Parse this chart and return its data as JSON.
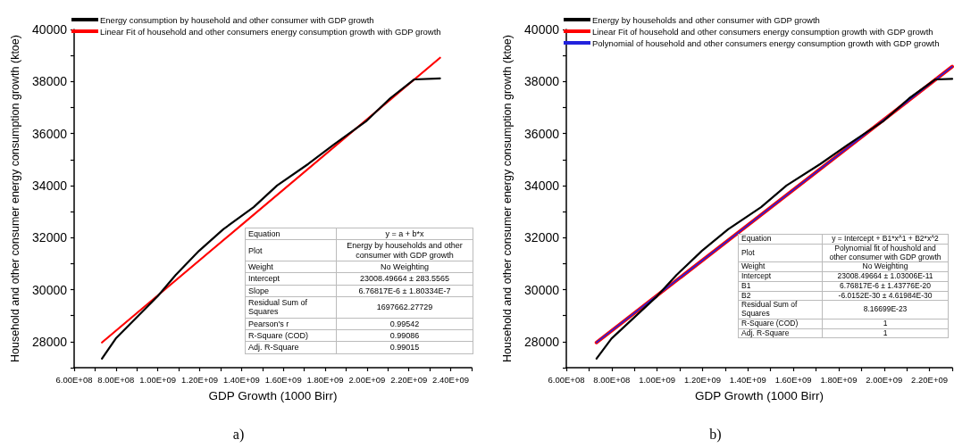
{
  "chart_data": [
    {
      "type": "line",
      "xlabel": "GDP Growth (1000 Birr)",
      "ylabel": "Household and other consumer energy consumption growth (ktoe)",
      "legend": "top left",
      "marker": "none",
      "line_style": "solid",
      "xlim": [
        600000000,
        2500000000
      ],
      "xticks": [
        {
          "value": 600000000,
          "label": "6.00E+08"
        },
        {
          "value": 700000000,
          "label": null
        },
        {
          "value": 800000000,
          "label": "8.00E+08"
        },
        {
          "value": 900000000,
          "label": null
        },
        {
          "value": 1000000000,
          "label": "1.00E+09"
        },
        {
          "value": 1100000000,
          "label": null
        },
        {
          "value": 1200000000,
          "label": "1.20E+09"
        },
        {
          "value": 1300000000,
          "label": null
        },
        {
          "value": 1400000000,
          "label": "1.40E+09"
        },
        {
          "value": 1500000000,
          "label": null
        },
        {
          "value": 1600000000,
          "label": "1.60E+09"
        },
        {
          "value": 1700000000,
          "label": null
        },
        {
          "value": 1800000000,
          "label": "1.80E+09"
        },
        {
          "value": 1900000000,
          "label": null
        },
        {
          "value": 2000000000,
          "label": "2.00E+09"
        },
        {
          "value": 2100000000,
          "label": null
        },
        {
          "value": 2200000000,
          "label": "2.20E+09"
        },
        {
          "value": 2300000000,
          "label": null
        },
        {
          "value": 2400000000,
          "label": "2.40E+09"
        },
        {
          "value": 2500000000,
          "label": null
        }
      ],
      "ylim": [
        27000,
        40000
      ],
      "yticks": [
        {
          "value": 27000,
          "label": null
        },
        28000,
        {
          "value": 29000,
          "label": null
        },
        30000,
        {
          "value": 31000,
          "label": null
        },
        32000,
        {
          "value": 33000,
          "label": null
        },
        34000,
        {
          "value": 35000,
          "label": null
        },
        36000,
        {
          "value": 37000,
          "label": null
        },
        38000,
        {
          "value": 39000,
          "label": null
        },
        40000
      ],
      "series": [
        {
          "name": "Energy consumption by household and other consumer with GDP growth",
          "color": "#000000",
          "x": [
            733000000,
            799000000,
            1000000000,
            1085000000,
            1197000000,
            1313000000,
            1458000000,
            1570000000,
            1719000000,
            1842000000,
            1994000000,
            2110000000,
            2226000000,
            2349000000
          ],
          "values": [
            27350,
            28120,
            29750,
            30560,
            31490,
            32320,
            33170,
            34000,
            34830,
            35580,
            36460,
            37350,
            38080,
            38120
          ]
        },
        {
          "name": "Linear Fit of household and other consumers energy consumption growth with GDP growth",
          "color": "#ff0000",
          "x": [
            733000000,
            2349000000
          ],
          "values": [
            27970,
            38910
          ]
        }
      ],
      "annotations": [
        "a)",
        "Equation",
        "y = a + b*x",
        "Plot",
        "Energy by households and other consumer with GDP growth",
        "Weight",
        "No Weighting",
        "Intercept",
        "23008.49664 ± 283.5565",
        "Slope",
        "6.76817E-6 ± 1.80334E-7",
        "Residual Sum of Squares",
        "1697662.27729",
        "Pearson's r",
        "0.99542",
        "R-Square (COD)",
        "0.99086",
        "Adj. R-Square",
        "0.99015"
      ]
    },
    {
      "type": "line",
      "xlabel": "GDP Growth (1000 Birr)",
      "ylabel": "Household and other consumer energy consumption growth (ktoe)",
      "legend": "top left",
      "marker": "none",
      "line_style": "solid",
      "xlim": [
        600000000,
        2300000000
      ],
      "xticks": [
        {
          "value": 600000000,
          "label": "6.00E+08"
        },
        {
          "value": 700000000,
          "label": null
        },
        {
          "value": 800000000,
          "label": "8.00E+08"
        },
        {
          "value": 900000000,
          "label": null
        },
        {
          "value": 1000000000,
          "label": "1.00E+09"
        },
        {
          "value": 1100000000,
          "label": null
        },
        {
          "value": 1200000000,
          "label": "1.20E+09"
        },
        {
          "value": 1300000000,
          "label": null
        },
        {
          "value": 1400000000,
          "label": "1.40E+09"
        },
        {
          "value": 1500000000,
          "label": null
        },
        {
          "value": 1600000000,
          "label": "1.60E+09"
        },
        {
          "value": 1700000000,
          "label": null
        },
        {
          "value": 1800000000,
          "label": "1.80E+09"
        },
        {
          "value": 1900000000,
          "label": null
        },
        {
          "value": 2000000000,
          "label": "2.00E+09"
        },
        {
          "value": 2100000000,
          "label": null
        },
        {
          "value": 2200000000,
          "label": "2.20E+09"
        },
        {
          "value": 2300000000,
          "label": null
        }
      ],
      "ylim": [
        27000,
        40000
      ],
      "yticks": [
        {
          "value": 27000,
          "label": null
        },
        28000,
        {
          "value": 29000,
          "label": null
        },
        30000,
        {
          "value": 31000,
          "label": null
        },
        32000,
        {
          "value": 33000,
          "label": null
        },
        34000,
        {
          "value": 35000,
          "label": null
        },
        36000,
        {
          "value": 37000,
          "label": null
        },
        38000,
        {
          "value": 39000,
          "label": null
        },
        40000
      ],
      "series": [
        {
          "name": "Energy by households and other consumer with GDP growth",
          "color": "#000000",
          "x": [
            733000000,
            799000000,
            1000000000,
            1085000000,
            1197000000,
            1313000000,
            1458000000,
            1570000000,
            1719000000,
            1842000000,
            1994000000,
            2110000000,
            2226000000,
            2300000000
          ],
          "values": [
            27350,
            28120,
            29750,
            30560,
            31490,
            32320,
            33170,
            34000,
            34830,
            35580,
            36460,
            37350,
            38080,
            38100
          ]
        },
        {
          "name": "Linear Fit of household and other consumers energy consumption growth with GDP growth",
          "color": "#ff0000",
          "x": [
            733000000,
            2300000000
          ],
          "values": [
            27970,
            38570
          ]
        },
        {
          "name": "Polynomial of household and other consumers energy consumption growth with GDP growth",
          "color": "#2222dd",
          "x": [
            733000000,
            2300000000
          ],
          "values": [
            27970,
            38570
          ]
        }
      ],
      "annotations": [
        "b)",
        "Equation",
        "y = Intercept + B1*x^1 + B2*x^2",
        "Plot",
        "Polynomial fit of houshold and other consumer with GDP growth",
        "Weight",
        "No Weighting",
        "Intercept",
        "23008.49664 ± 1.03006E-11",
        "B1",
        "6.76817E-6 ± 1.43776E-20",
        "B2",
        "-6.0152E-30 ± 4.61984E-30",
        "Residual Sum of Squares",
        "8.16699E-23",
        "R-Square (COD)",
        "1",
        "Adj. R-Square",
        "1"
      ]
    }
  ]
}
